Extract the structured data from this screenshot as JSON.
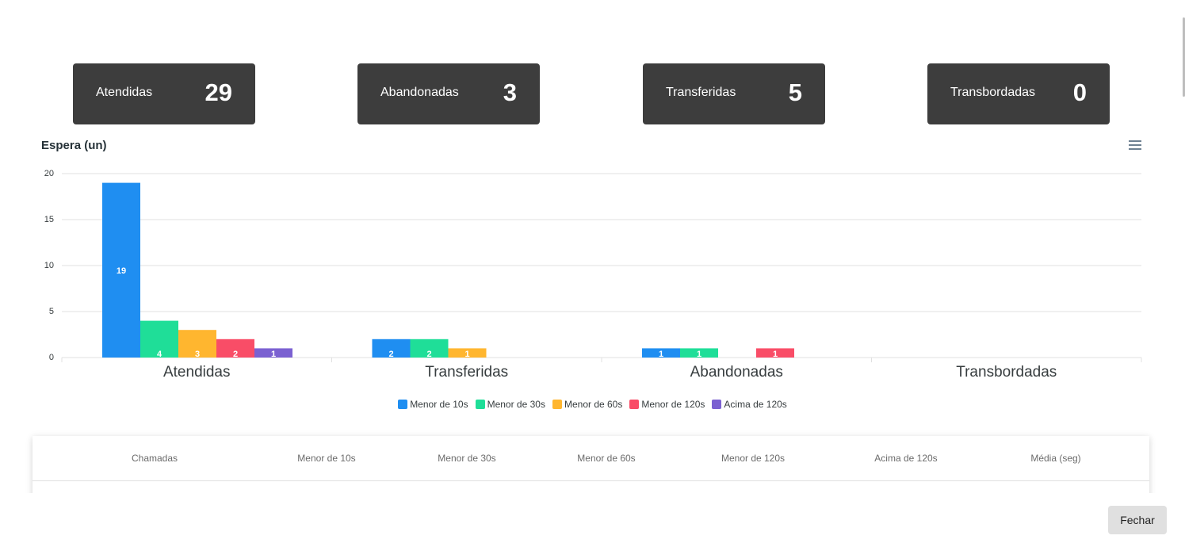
{
  "stats": [
    {
      "label": "Atendidas",
      "value": "29"
    },
    {
      "label": "Abandonadas",
      "value": "3"
    },
    {
      "label": "Transferidas",
      "value": "5"
    },
    {
      "label": "Transbordadas",
      "value": "0"
    }
  ],
  "chart": {
    "title": "Espera (un)",
    "menu_icon": "hamburger-menu-icon"
  },
  "chart_data": {
    "type": "bar",
    "title": "Espera (un)",
    "categories": [
      "Atendidas",
      "Transferidas",
      "Abandonadas",
      "Transbordadas"
    ],
    "series": [
      {
        "name": "Menor de 10s",
        "color": "#1f8ef1",
        "values": [
          19,
          2,
          1,
          0
        ]
      },
      {
        "name": "Menor de 30s",
        "color": "#1fde98",
        "values": [
          4,
          2,
          1,
          0
        ]
      },
      {
        "name": "Menor de 60s",
        "color": "#ffb62f",
        "values": [
          3,
          1,
          0,
          0
        ]
      },
      {
        "name": "Menor de 120s",
        "color": "#f94d67",
        "values": [
          2,
          0,
          1,
          0
        ]
      },
      {
        "name": "Acima de 120s",
        "color": "#7b61d1",
        "values": [
          1,
          0,
          0,
          0
        ]
      }
    ],
    "yticks": [
      "20",
      "15",
      "10",
      "5",
      "0"
    ],
    "ylim": [
      0,
      20
    ],
    "grid": true,
    "legend": "bottom-center"
  },
  "table": {
    "headers": [
      "Chamadas",
      "Menor de 10s",
      "Menor de 30s",
      "Menor de 60s",
      "Menor de 120s",
      "Acima de 120s",
      "Média (seg)"
    ]
  },
  "footer": {
    "close_label": "Fechar"
  }
}
